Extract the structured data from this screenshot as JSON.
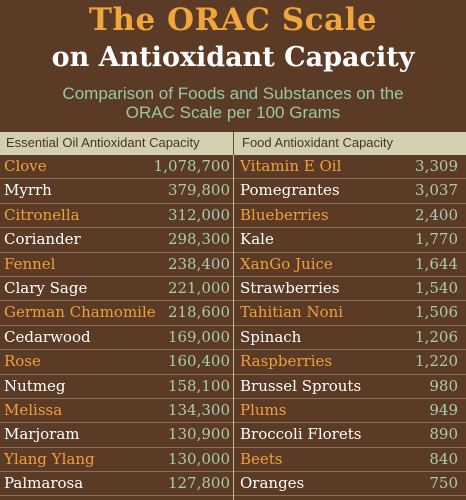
{
  "header": {
    "title_line1": "The ORAC Scale",
    "title_line2": "on Antioxidant Capacity",
    "subtitle_line1": "Comparison of Foods and Substances on the",
    "subtitle_line2": "ORAC Scale per 100 Grams"
  },
  "table": {
    "left_header": "Essential Oil Antioxidant Capacity",
    "right_header": "Food Antioxidant Capacity",
    "rows": [
      {
        "oil": "Clove",
        "oil_value": "1,078,700",
        "food": "Vitamin E Oil",
        "food_value": "3,309"
      },
      {
        "oil": "Myrrh",
        "oil_value": "379,800",
        "food": "Pomegrantes",
        "food_value": "3,037"
      },
      {
        "oil": "Citronella",
        "oil_value": "312,000",
        "food": "Blueberries",
        "food_value": "2,400"
      },
      {
        "oil": "Coriander",
        "oil_value": "298,300",
        "food": "Kale",
        "food_value": "1,770"
      },
      {
        "oil": "Fennel",
        "oil_value": "238,400",
        "food": "XanGo Juice",
        "food_value": "1,644"
      },
      {
        "oil": "Clary Sage",
        "oil_value": "221,000",
        "food": "Strawberries",
        "food_value": "1,540"
      },
      {
        "oil": "German Chamomile",
        "oil_value": "218,600",
        "food": "Tahitian Noni",
        "food_value": "1,506"
      },
      {
        "oil": "Cedarwood",
        "oil_value": "169,000",
        "food": "Spinach",
        "food_value": "1,206"
      },
      {
        "oil": "Rose",
        "oil_value": "160,400",
        "food": "Raspberries",
        "food_value": "1,220"
      },
      {
        "oil": "Nutmeg",
        "oil_value": "158,100",
        "food": "Brussel Sprouts",
        "food_value": "980"
      },
      {
        "oil": "Melissa",
        "oil_value": "134,300",
        "food": "Plums",
        "food_value": "949"
      },
      {
        "oil": "Marjoram",
        "oil_value": "130,900",
        "food": "Broccoli Florets",
        "food_value": "890"
      },
      {
        "oil": "Ylang Ylang",
        "oil_value": "130,000",
        "food": "Beets",
        "food_value": "840"
      },
      {
        "oil": "Palmarosa",
        "oil_value": "127,800",
        "food": "Oranges",
        "food_value": "750"
      }
    ]
  },
  "colors": {
    "background": "#5b3a26",
    "title_orange": "#f0a63a",
    "subtitle_green": "#9bc7a6",
    "header_bar": "#d4cfb2"
  }
}
